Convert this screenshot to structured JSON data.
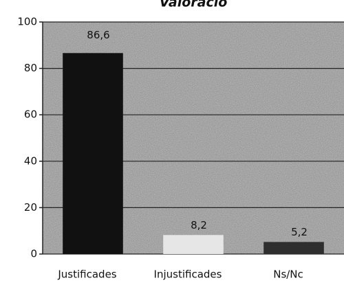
{
  "chart_data": {
    "type": "bar",
    "title": "Valoració",
    "categories": [
      "Justificades",
      "Injustificades",
      "Ns/Nc"
    ],
    "values": [
      86.6,
      8.2,
      5.2
    ],
    "value_labels": [
      "86,6",
      "8,2",
      "5,2"
    ],
    "colors": [
      "#111111",
      "#e6e6e6",
      "#2e2e2e"
    ],
    "ylim": [
      0,
      100
    ],
    "yticks": [
      0,
      20,
      40,
      60,
      80,
      100
    ],
    "grid": true
  }
}
